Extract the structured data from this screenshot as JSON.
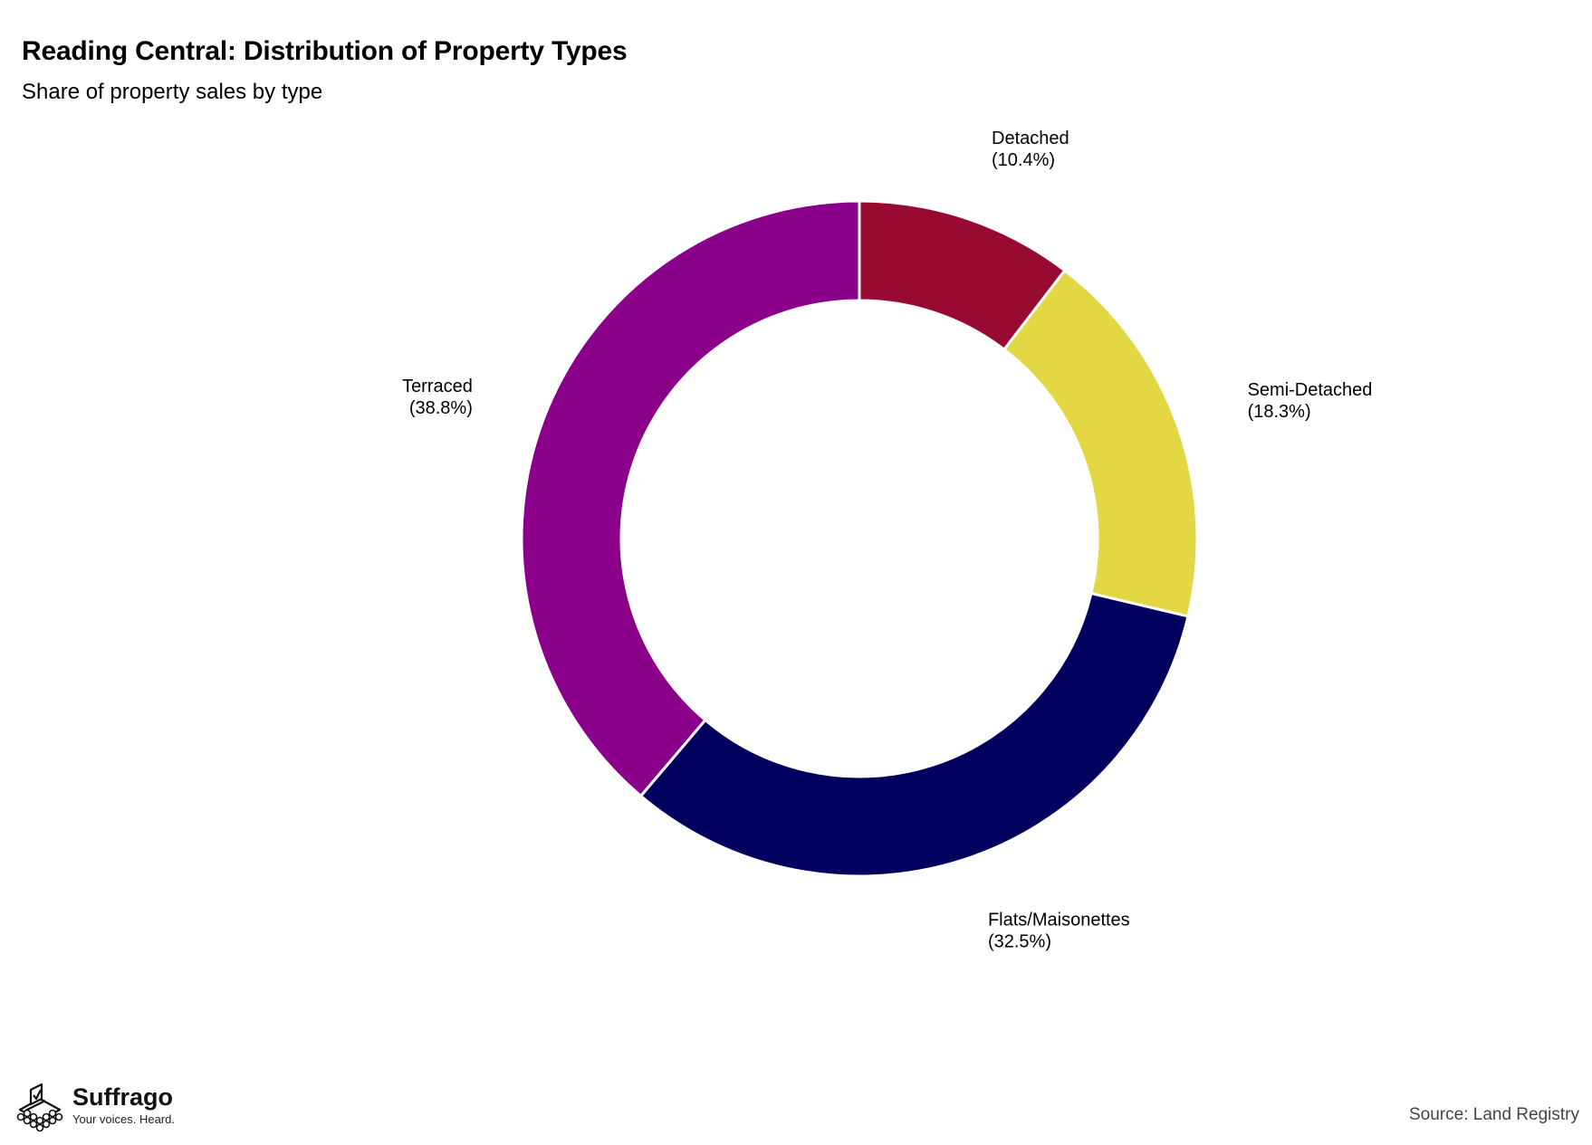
{
  "header": {
    "title": "Reading Central: Distribution of Property Types",
    "subtitle": "Share of property sales by type"
  },
  "footer": {
    "source": "Source: Land Registry",
    "logo_name": "Suffrago",
    "logo_tagline": "Your voices. Heard."
  },
  "chart_data": {
    "type": "pie",
    "variant": "donut",
    "title": "Reading Central: Distribution of Property Types",
    "subtitle": "Share of property sales by type",
    "start": "12 o'clock, clockwise",
    "slices": [
      {
        "label": "Detached",
        "value": 10.4,
        "display": "(10.4%)",
        "color": "#990a32"
      },
      {
        "label": "Semi-Detached",
        "value": 18.3,
        "display": "(18.3%)",
        "color": "#e3d744"
      },
      {
        "label": "Flats/Maisonettes",
        "value": 32.5,
        "display": "(32.5%)",
        "color": "#00005f"
      },
      {
        "label": "Terraced",
        "value": 38.8,
        "display": "(38.8%)",
        "color": "#8b008b"
      }
    ],
    "legend": "none (direct labels)"
  }
}
